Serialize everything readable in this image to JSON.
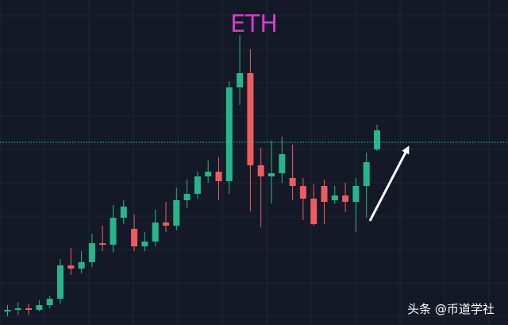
{
  "chart_data": {
    "type": "candlestick",
    "title": "ETH",
    "xlabel": "",
    "ylabel": "",
    "x": [
      1,
      2,
      3,
      4,
      5,
      6,
      7,
      8,
      9,
      10,
      11,
      12,
      13,
      14,
      15,
      16,
      17,
      18,
      19,
      20,
      21,
      22,
      23,
      24,
      25,
      26,
      27,
      28,
      29,
      30,
      31,
      32,
      33,
      34,
      35,
      36
    ],
    "open": [
      10,
      12,
      14,
      12,
      18,
      26,
      68,
      64,
      72,
      96,
      94,
      128,
      114,
      92,
      98,
      122,
      118,
      150,
      158,
      180,
      186,
      174,
      292,
      310,
      194,
      180,
      184,
      178,
      168,
      152,
      168,
      150,
      156,
      148,
      168,
      214
    ],
    "close": [
      12,
      14,
      12,
      18,
      26,
      68,
      64,
      72,
      96,
      94,
      128,
      142,
      92,
      98,
      122,
      118,
      150,
      158,
      180,
      186,
      174,
      292,
      310,
      194,
      180,
      184,
      208,
      168,
      152,
      120,
      148,
      156,
      148,
      168,
      198,
      238
    ],
    "high": [
      18,
      22,
      20,
      24,
      30,
      76,
      90,
      86,
      108,
      118,
      144,
      150,
      132,
      110,
      138,
      148,
      166,
      176,
      186,
      200,
      204,
      300,
      358,
      340,
      216,
      225,
      230,
      220,
      178,
      170,
      176,
      168,
      172,
      178,
      210,
      245
    ],
    "low": [
      4,
      6,
      6,
      10,
      14,
      20,
      56,
      58,
      66,
      86,
      84,
      120,
      86,
      86,
      92,
      110,
      112,
      140,
      152,
      172,
      150,
      158,
      270,
      136,
      116,
      146,
      172,
      150,
      125,
      118,
      120,
      145,
      135,
      110,
      128,
      212
    ],
    "up_color": "#26b68a",
    "down_color": "#ef5c5e",
    "price_line": 223,
    "ylim": [
      0,
      380
    ],
    "grid": true,
    "legend": "none",
    "annotation": "upward-trend-arrow"
  },
  "watermark": "头条 @币道学社"
}
